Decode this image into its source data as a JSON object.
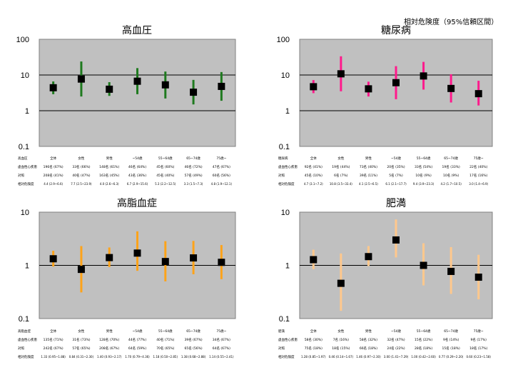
{
  "note": "相対危険度（95%信頼区間）",
  "categories": [
    "全体",
    "女性",
    "男性",
    "~54歳",
    "55~64歳",
    "65~74歳",
    "75歳~"
  ],
  "row_labels": [
    "虚血性心疾患",
    "対照",
    "相対危険度"
  ],
  "chart_data": [
    {
      "type": "errorbar",
      "title": "高血圧",
      "color": "#1f7a1f",
      "ylim": [
        0.1,
        100
      ],
      "yscale": "log",
      "yticks": [
        "100",
        "10",
        "1",
        "0.1"
      ],
      "values": [
        4.4,
        7.7,
        4.0,
        6.7,
        5.3,
        3.3,
        4.8
      ],
      "lower": [
        2.9,
        2.5,
        2.6,
        2.9,
        2.2,
        1.5,
        1.9
      ],
      "upper": [
        6.6,
        23.9,
        6.3,
        15.6,
        12.5,
        7.3,
        12.1
      ],
      "table": {
        "label": "高血圧",
        "cases": [
          "196名 (67%)",
          "33名 (66%)",
          "148名 (61%)",
          "46名 (64%)",
          "45名 (60%)",
          "46名 (72%)",
          "47名 (67%)"
        ],
        "controls": [
          "208名 (41%)",
          "40名 (47%)",
          "163名 (45%)",
          "43名 (36%)",
          "45名 (40%)",
          "57名 (49%)",
          "60名 (56%)"
        ],
        "rr": [
          "4.4 (2.9~6.6)",
          "7.7 (2.5~23.9)",
          "4.0 (2.6~6.3)",
          "6.7 (2.9~15.6)",
          "5.3 (2.2~12.5)",
          "3.3 (1.5~7.3)",
          "4.8 (1.9~12.1)"
        ]
      }
    },
    {
      "type": "errorbar",
      "title": "糖尿病",
      "color": "#ff1a8c",
      "ylim": [
        0.1,
        100
      ],
      "yscale": "log",
      "yticks": [
        "100",
        "10",
        "1",
        "0.1"
      ],
      "values": [
        4.7,
        10.8,
        4.1,
        6.1,
        9.4,
        4.2,
        3.0
      ],
      "lower": [
        3.1,
        3.5,
        2.5,
        2.1,
        3.9,
        1.7,
        1.4
      ],
      "upper": [
        7.2,
        33.4,
        6.5,
        17.7,
        23.3,
        10.5,
        6.9
      ],
      "table": {
        "label": "糖尿病",
        "cases": [
          "92名 (41%)",
          "19名 (44%)",
          "73名 (40%)",
          "20名 (35%)",
          "33名 (54%)",
          "19名 (33%)",
          "22名 (40%)"
        ],
        "controls": [
          "45名 (10%)",
          "6名 (7%)",
          "39名 (11%)",
          "5名 (7%)",
          "10名 (9%)",
          "10名 (9%)",
          "17名 (16%)"
        ],
        "rr": [
          "4.7 (3.1~7.2)",
          "10.8 (3.5~33.4)",
          "4.1 (2.5~6.5)",
          "6.1 (2.1~17.7)",
          "9.4 (3.9~23.3)",
          "4.2 (1.7~10.5)",
          "3.0 (1.4~6.9)"
        ]
      }
    },
    {
      "type": "errorbar",
      "title": "高脂血症",
      "color": "#ffa31a",
      "ylim": [
        0.1,
        10
      ],
      "yscale": "log",
      "yticks": [
        "10",
        "1",
        "0.1"
      ],
      "values": [
        1.33,
        0.84,
        1.4,
        1.7,
        1.18,
        1.38,
        1.14
      ],
      "lower": [
        0.95,
        0.31,
        0.93,
        0.79,
        0.5,
        0.68,
        0.55
      ],
      "upper": [
        1.88,
        2.3,
        2.17,
        4.36,
        2.85,
        2.88,
        2.41
      ],
      "table": {
        "label": "高脂血症",
        "cases": [
          "135名 (71%)",
          "31名 (73%)",
          "128名 (70%)",
          "44名 (77%)",
          "40名 (71%)",
          "39名 (67%)",
          "34名 (67%)"
        ],
        "controls": [
          "242名 (67%)",
          "57名 (65%)",
          "208名 (67%)",
          "64名 (59%)",
          "70名 (65%)",
          "65名 (56%)",
          "64名 (67%)"
        ],
        "rr": [
          "1.33 (0.95~1.88)",
          "0.84 (0.31~2.30)",
          "1.40 (0.93~2.17)",
          "1.70 (0.79~4.36)",
          "1.18 (0.50~2.85)",
          "1.38 (0.68~2.88)",
          "1.14 (0.55~2.41)"
        ]
      }
    },
    {
      "type": "errorbar",
      "title": "肥満",
      "color": "#ffc88c",
      "ylim": [
        0.1,
        10
      ],
      "yscale": "log",
      "yticks": [
        "10",
        "1",
        "0.1"
      ],
      "values": [
        1.28,
        0.46,
        1.46,
        3.0,
        1.0,
        0.77,
        0.6
      ],
      "lower": [
        0.85,
        0.14,
        0.97,
        1.41,
        0.42,
        0.29,
        0.23
      ],
      "upper": [
        1.97,
        1.67,
        2.3,
        7.29,
        2.6,
        2.2,
        1.58
      ],
      "table": {
        "label": "肥満",
        "cases": [
          "58名 (30%)",
          "7名 (16%)",
          "58名 (32%)",
          "32名 (47%)",
          "15名 (22%)",
          "9名 (14%)",
          "9名 (17%)"
        ],
        "controls": [
          "75名 (18%)",
          "18名 (15%)",
          "66名 (18%)",
          "24名 (22%)",
          "28名 (18%)",
          "15名 (18%)",
          "18名 (17%)"
        ],
        "rr": [
          "1.28 (0.85~1.97)",
          "0.46 (0.14~1.67)",
          "1.46 (0.97~2.30)",
          "3.00 (1.41~7.29)",
          "1.00 (0.42~2.60)",
          "0.77 (0.29~2.20)",
          "0.60 (0.23~1.58)"
        ]
      }
    }
  ]
}
